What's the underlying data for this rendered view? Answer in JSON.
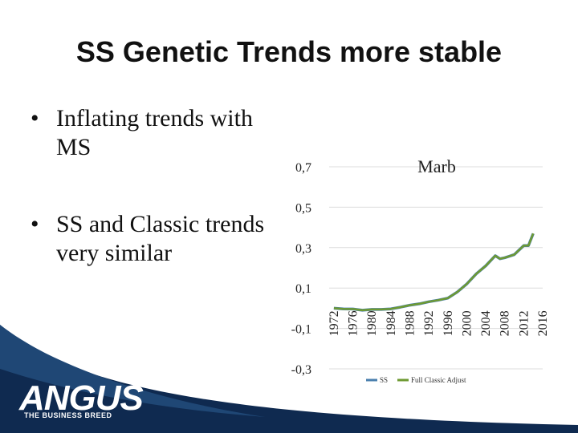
{
  "slide": {
    "title": "SS Genetic Trends more stable",
    "bullets": [
      "Inflating trends with MS",
      "SS and Classic trends very similar"
    ],
    "bullet_glyph": "•"
  },
  "logo": {
    "text": "ANGUS",
    "tagline": "THE BUSINESS BREED"
  },
  "colors": {
    "ss": "#4a7fae",
    "classic": "#6e9a32",
    "footer_dark": "#0f2a50",
    "footer_mid": "#1f4775"
  },
  "chart_data": {
    "type": "line",
    "title": "Marb",
    "ylim": [
      -0.3,
      0.7
    ],
    "yticks": [
      0.7,
      0.5,
      0.3,
      0.1,
      -0.1,
      -0.3
    ],
    "ytick_labels": [
      "0,7",
      "0,5",
      "0,3",
      "0,1",
      "-0,1",
      "-0,3"
    ],
    "xticks": [
      1972,
      1976,
      1980,
      1984,
      1988,
      1992,
      1996,
      2000,
      2004,
      2008,
      2012,
      2016
    ],
    "xtick_labels": [
      "1972",
      "1976",
      "1980",
      "1984",
      "1988",
      "1992",
      "1996",
      "2000",
      "2004",
      "2008",
      "2012",
      "2016"
    ],
    "grid": true,
    "legend_position": "bottom",
    "series": [
      {
        "name": "SS",
        "x": [
          1972,
          1974,
          1976,
          1978,
          1980,
          1982,
          1984,
          1986,
          1988,
          1990,
          1992,
          1994,
          1996,
          1998,
          2000,
          2002,
          2004,
          2006,
          2007,
          2008,
          2010,
          2012,
          2013,
          2014
        ],
        "y": [
          0.0,
          -0.003,
          -0.004,
          -0.01,
          -0.006,
          -0.006,
          -0.003,
          0.005,
          0.015,
          0.022,
          0.032,
          0.04,
          0.05,
          0.08,
          0.12,
          0.17,
          0.21,
          0.26,
          0.245,
          0.25,
          0.265,
          0.31,
          0.31,
          0.37
        ]
      },
      {
        "name": "Full Classic Adjust",
        "x": [
          1972,
          1974,
          1976,
          1978,
          1980,
          1982,
          1984,
          1986,
          1988,
          1990,
          1992,
          1994,
          1996,
          1998,
          2000,
          2002,
          2004,
          2006,
          2007,
          2008,
          2010,
          2012,
          2013,
          2014
        ],
        "y": [
          0.0,
          -0.003,
          -0.004,
          -0.01,
          -0.006,
          -0.006,
          -0.003,
          0.005,
          0.015,
          0.022,
          0.032,
          0.04,
          0.05,
          0.08,
          0.12,
          0.17,
          0.21,
          0.26,
          0.245,
          0.25,
          0.265,
          0.31,
          0.31,
          0.37
        ]
      }
    ]
  }
}
